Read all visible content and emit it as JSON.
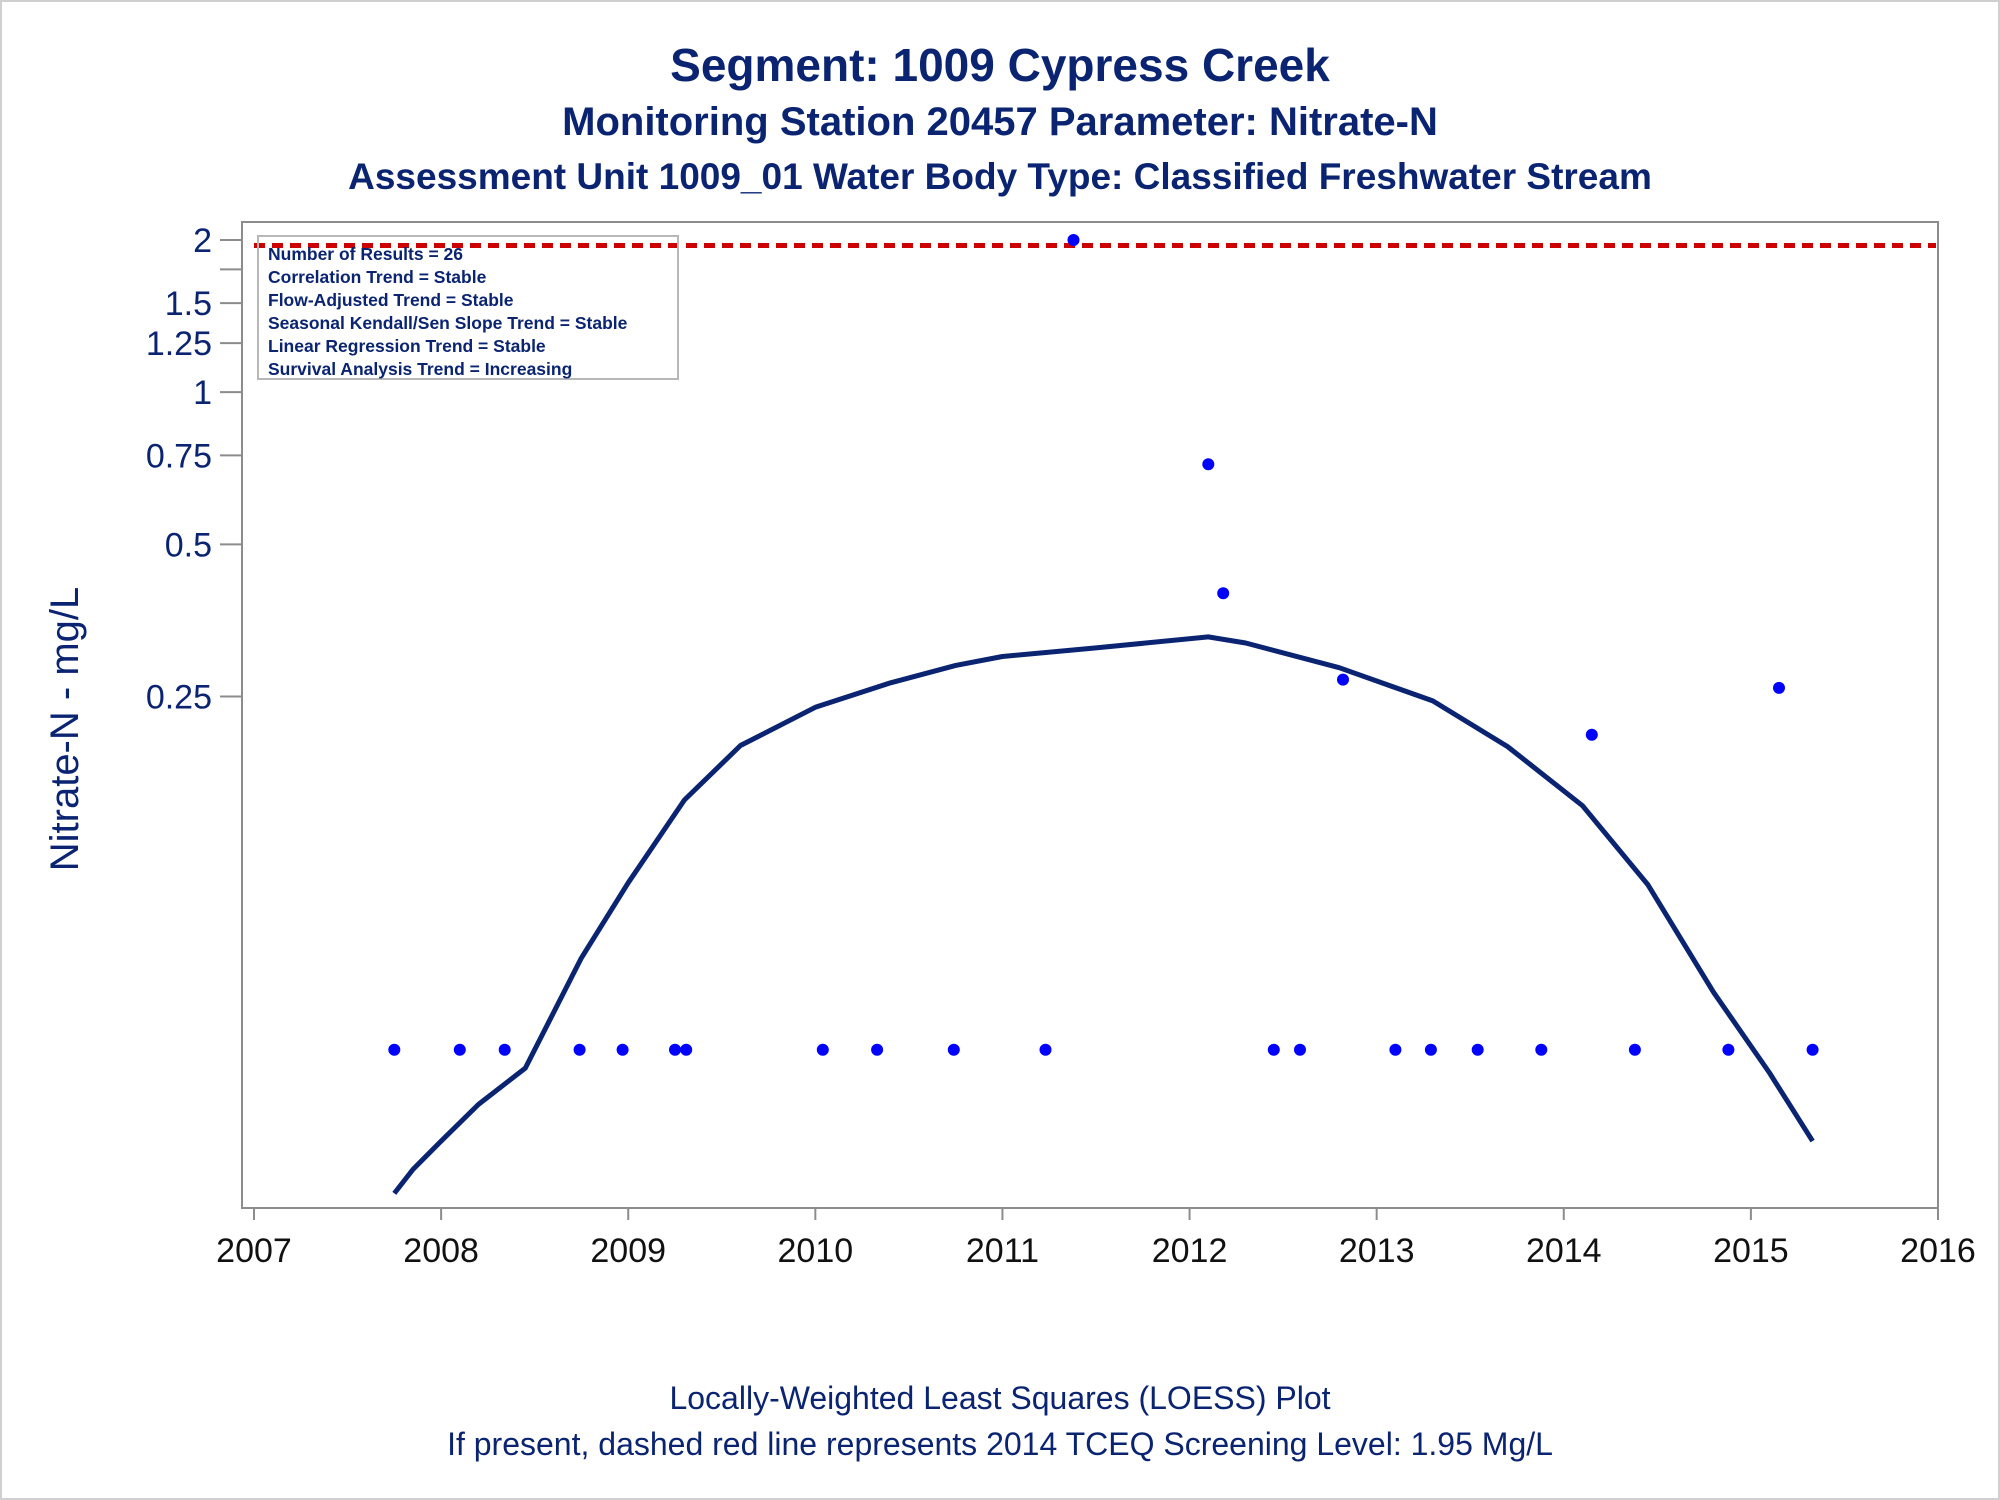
{
  "chart_data": {
    "type": "scatter",
    "title": "Segment: 1009  Cypress Creek",
    "subtitle": "Monitoring Station 20457 Parameter: Nitrate-N",
    "subtitle2": "Assessment Unit 1009_01   Water Body Type: Classified Freshwater Stream",
    "ylabel": "Nitrate-N - mg/L",
    "xlabel": "",
    "footnote1": "Locally-Weighted Least Squares (LOESS) Plot",
    "footnote2": "If present, dashed red line represents 2014 TCEQ Screening Level: 1.95 Mg/L",
    "y_scale": "log",
    "xlim": [
      2007,
      2016
    ],
    "ylim": [
      0.025,
      2.0
    ],
    "x_ticks": [
      "2007",
      "2008",
      "2009",
      "2010",
      "2011",
      "2012",
      "2013",
      "2014",
      "2015",
      "2016"
    ],
    "y_ticks": [
      {
        "value": 2,
        "label": "2"
      },
      {
        "value": 1.75,
        "label": ""
      },
      {
        "value": 1.5,
        "label": "1.5"
      },
      {
        "value": 1.25,
        "label": "1.25"
      },
      {
        "value": 1,
        "label": "1"
      },
      {
        "value": 0.75,
        "label": "0.75"
      },
      {
        "value": 0.5,
        "label": "0.5"
      },
      {
        "value": 0.25,
        "label": "0.25"
      }
    ],
    "grid": false,
    "legend_position": "top-left",
    "stats_box": [
      "Number of Results = 26",
      "Correlation Trend = Stable",
      "Flow-Adjusted Trend = Stable",
      "Seasonal Kendall/Sen Slope Trend = Stable",
      "Linear Regression Trend = Stable",
      "Survival Analysis Trend = Increasing"
    ],
    "screening_level": 1.95,
    "points": {
      "x": [
        2007.75,
        2008.1,
        2008.34,
        2008.74,
        2008.97,
        2009.25,
        2009.31,
        2010.04,
        2010.33,
        2010.74,
        2011.23,
        2011.38,
        2012.1,
        2012.18,
        2012.45,
        2012.59,
        2012.82,
        2013.1,
        2013.29,
        2013.54,
        2013.88,
        2014.15,
        2014.38,
        2014.88,
        2015.15,
        2015.33
      ],
      "y": [
        0.05,
        0.05,
        0.05,
        0.05,
        0.05,
        0.05,
        0.05,
        0.05,
        0.05,
        0.05,
        0.05,
        2.0,
        0.72,
        0.4,
        0.05,
        0.05,
        0.27,
        0.05,
        0.05,
        0.05,
        0.05,
        0.21,
        0.05,
        0.05,
        0.26,
        0.05
      ]
    },
    "loess": {
      "x": [
        2007.75,
        2007.85,
        2008.0,
        2008.2,
        2008.45,
        2008.75,
        2009.0,
        2009.3,
        2009.6,
        2010.0,
        2010.4,
        2010.75,
        2011.0,
        2011.5,
        2012.1,
        2012.3,
        2012.8,
        2013.3,
        2013.7,
        2014.1,
        2014.45,
        2014.8,
        2015.1,
        2015.33
      ],
      "y": [
        0.026,
        0.029,
        0.033,
        0.039,
        0.046,
        0.076,
        0.107,
        0.156,
        0.2,
        0.238,
        0.266,
        0.288,
        0.3,
        0.312,
        0.328,
        0.319,
        0.285,
        0.245,
        0.199,
        0.152,
        0.106,
        0.065,
        0.045,
        0.033
      ]
    },
    "colors": {
      "points": "#0000ff",
      "loess": "#0a2472",
      "screening_line": "#cc0000",
      "text": "#0a2472"
    }
  }
}
